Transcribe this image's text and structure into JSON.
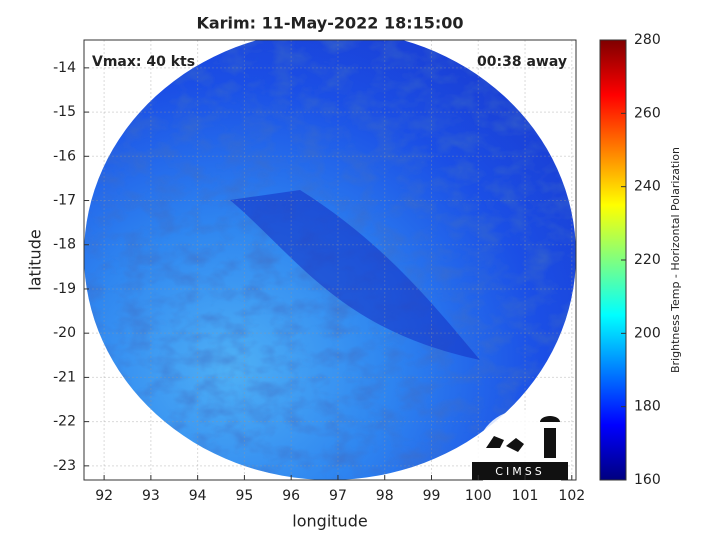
{
  "chart_data": {
    "type": "map",
    "title": "Karim: 11-May-2022 18:15:00",
    "xlabel": "longitude",
    "ylabel": "latitude",
    "xlim": [
      91.57,
      102.09
    ],
    "ylim": [
      -23.32,
      -13.37
    ],
    "xticks": [
      92,
      93,
      94,
      95,
      96,
      97,
      98,
      99,
      100,
      101,
      102
    ],
    "yticks": [
      -23,
      -22,
      -21,
      -20,
      -19,
      -18,
      -17,
      -16,
      -15,
      -14
    ],
    "grid": true,
    "annotations": [
      "Vmax: 40 kts",
      "00:38 away"
    ],
    "colorbar": {
      "label": "Brightness Temp - Horizontal Polarization",
      "colormap": "jet",
      "lim": [
        160,
        280
      ],
      "ticks": [
        160,
        180,
        200,
        220,
        240,
        260,
        280
      ]
    },
    "logo": "CIMSS"
  }
}
